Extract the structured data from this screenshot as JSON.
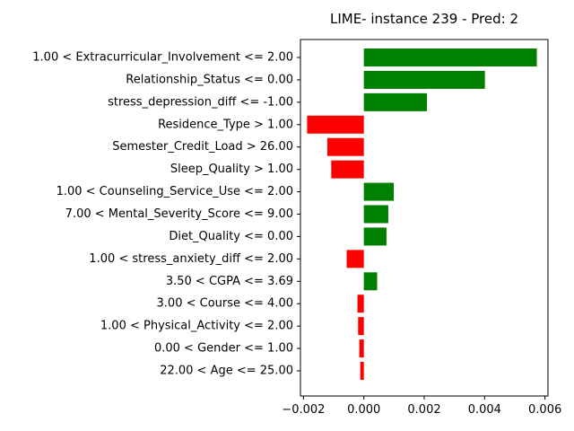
{
  "chart_data": {
    "type": "bar",
    "orientation": "horizontal",
    "title": "LIME- instance 239 - Pred: 2",
    "xlabel": "",
    "ylabel": "",
    "xlim": [
      -0.0021,
      0.0061
    ],
    "xticks": [
      -0.002,
      0.0,
      0.002,
      0.004,
      0.006
    ],
    "xtick_labels": [
      "−0.002",
      "0.000",
      "0.002",
      "0.004",
      "0.006"
    ],
    "grid": false,
    "positive_color": "#008000",
    "negative_color": "#ff0000",
    "categories": [
      "1.00 < Extracurricular_Involvement <= 2.00",
      "Relationship_Status <= 0.00",
      "stress_depression_diff <= -1.00",
      "Residence_Type > 1.00",
      "Semester_Credit_Load > 26.00",
      "Sleep_Quality > 1.00",
      "1.00 < Counseling_Service_Use <= 2.00",
      "7.00 < Mental_Severity_Score <= 9.00",
      "Diet_Quality <= 0.00",
      "1.00 < stress_anxiety_diff <= 2.00",
      "3.50 < CGPA <= 3.69",
      "3.00 < Course <= 4.00",
      "1.00 < Physical_Activity <= 2.00",
      "0.00 < Gender <= 1.00",
      "22.00 < Age <= 25.00"
    ],
    "values": [
      0.00573,
      0.00401,
      0.00209,
      -0.00188,
      -0.00121,
      -0.00108,
      0.00099,
      0.00081,
      0.00075,
      -0.00057,
      0.00044,
      -0.00021,
      -0.00019,
      -0.00015,
      -0.00012
    ]
  }
}
